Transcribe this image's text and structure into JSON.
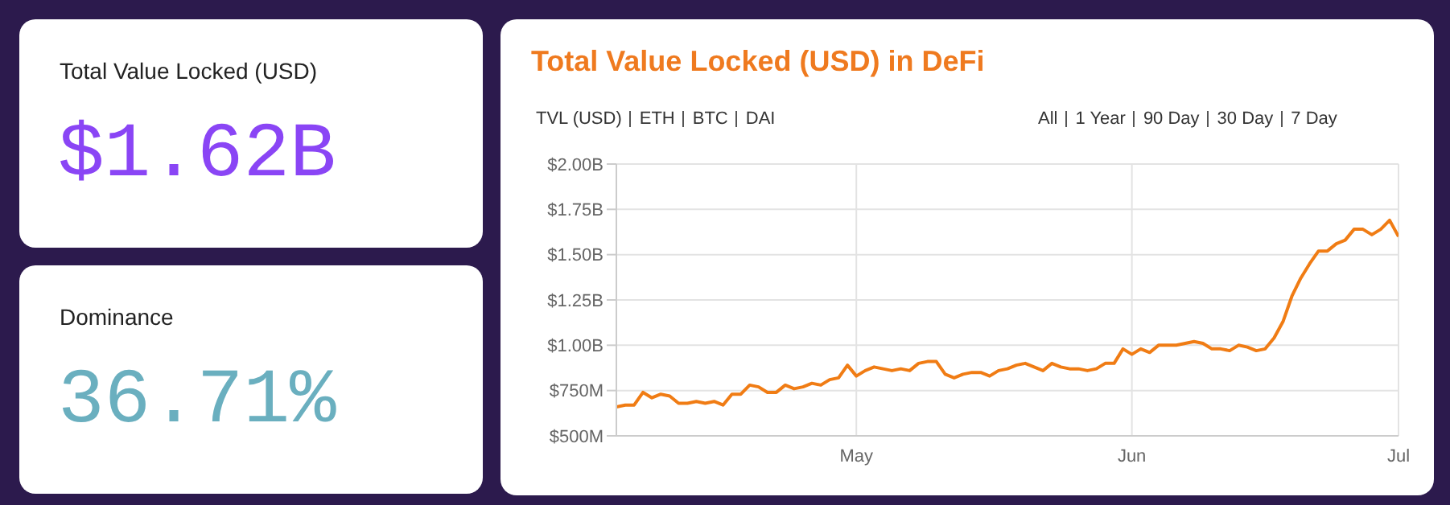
{
  "chart_data": [
    {
      "type": "other",
      "title": "Total Value Locked (USD)",
      "annotations": [
        "$1.62B"
      ],
      "color": "#8a45f5"
    },
    {
      "type": "other",
      "title": "Dominance",
      "annotations": [
        "36.71%"
      ],
      "color": "#6aafbf"
    },
    {
      "type": "line",
      "title": "Total Value Locked (USD) in DeFi",
      "annotations": [
        "TVL (USD)",
        "ETH",
        "BTC",
        "DAI",
        "All",
        "1 Year",
        "90 Day",
        "30 Day",
        "7 Day"
      ],
      "x": [
        "--04-04",
        "--04-05",
        "--04-06",
        "--04-07",
        "--04-08",
        "--04-09",
        "--04-10",
        "--04-11",
        "--04-12",
        "--04-13",
        "--04-14",
        "--04-15",
        "--04-16",
        "--04-17",
        "--04-18",
        "--04-19",
        "--04-20",
        "--04-21",
        "--04-22",
        "--04-23",
        "--04-24",
        "--04-25",
        "--04-26",
        "--04-27",
        "--04-28",
        "--04-29",
        "--04-30",
        "--05-01",
        "--05-02",
        "--05-03",
        "--05-04",
        "--05-05",
        "--05-06",
        "--05-07",
        "--05-08",
        "--05-09",
        "--05-10",
        "--05-11",
        "--05-12",
        "--05-13",
        "--05-14",
        "--05-15",
        "--05-16",
        "--05-17",
        "--05-18",
        "--05-19",
        "--05-20",
        "--05-21",
        "--05-22",
        "--05-23",
        "--05-24",
        "--05-25",
        "--05-26",
        "--05-27",
        "--05-28",
        "--05-29",
        "--05-30",
        "--05-31",
        "--06-01",
        "--06-02",
        "--06-03",
        "--06-04",
        "--06-05",
        "--06-06",
        "--06-07",
        "--06-08",
        "--06-09",
        "--06-10",
        "--06-11",
        "--06-12",
        "--06-13",
        "--06-14",
        "--06-15",
        "--06-16",
        "--06-17",
        "--06-18",
        "--06-19",
        "--06-20",
        "--06-21",
        "--06-22",
        "--06-23",
        "--06-24",
        "--06-25",
        "--06-26",
        "--06-27",
        "--06-28",
        "--06-29",
        "--06-30",
        "--07-01"
      ],
      "series": [
        {
          "color": "#f07c14",
          "values": [
            660000000,
            670000000,
            670000000,
            740000000,
            710000000,
            730000000,
            720000000,
            680000000,
            680000000,
            690000000,
            680000000,
            690000000,
            670000000,
            730000000,
            730000000,
            780000000,
            770000000,
            740000000,
            740000000,
            780000000,
            760000000,
            770000000,
            790000000,
            780000000,
            810000000,
            820000000,
            890000000,
            830000000,
            860000000,
            880000000,
            870000000,
            860000000,
            870000000,
            860000000,
            900000000,
            910000000,
            910000000,
            840000000,
            820000000,
            840000000,
            850000000,
            850000000,
            830000000,
            860000000,
            870000000,
            890000000,
            900000000,
            880000000,
            860000000,
            900000000,
            880000000,
            870000000,
            870000000,
            860000000,
            870000000,
            900000000,
            900000000,
            980000000,
            950000000,
            980000000,
            960000000,
            1000000000,
            1000000000,
            1000000000,
            1010000000,
            1020000000,
            1010000000,
            980000000,
            980000000,
            970000000,
            1000000000,
            990000000,
            970000000,
            980000000,
            1040000000,
            1130000000,
            1270000000,
            1370000000,
            1450000000,
            1520000000,
            1520000000,
            1560000000,
            1580000000,
            1640000000,
            1640000000,
            1610000000,
            1640000000,
            1690000000,
            1600000000
          ]
        }
      ],
      "xlim": [
        "--04-04",
        "--07-01"
      ],
      "xticks": [
        {
          "value": "--05-01",
          "label": "May"
        },
        {
          "value": "--06-01",
          "label": "Jun"
        },
        {
          "value": "--07-01",
          "label": "Jul"
        }
      ],
      "ylim": [
        500000000,
        2000000000
      ],
      "yticks": [
        {
          "value": 500000000,
          "label": "$500M"
        },
        {
          "value": 750000000,
          "label": "$750M"
        },
        {
          "value": 1000000000,
          "label": "$1.00B"
        },
        {
          "value": 1250000000,
          "label": "$1.25B"
        },
        {
          "value": 1500000000,
          "label": "$1.50B"
        },
        {
          "value": 1750000000,
          "label": "$1.75B"
        },
        {
          "value": 2000000000,
          "label": "$2.00B"
        }
      ],
      "grid": true,
      "marker": "none",
      "line_style": "solid"
    }
  ]
}
